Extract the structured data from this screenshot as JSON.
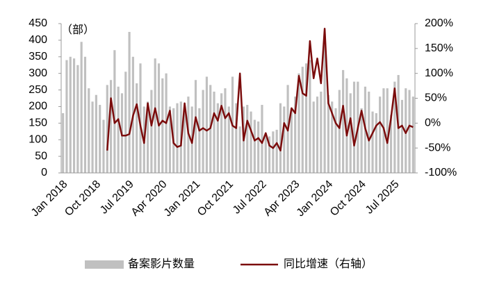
{
  "chart_data": {
    "type": "bar",
    "y_label": "（部）",
    "categories": [
      "Jan 2018",
      null,
      null,
      null,
      null,
      null,
      null,
      null,
      null,
      "Oct 2018",
      null,
      null,
      null,
      null,
      null,
      null,
      null,
      null,
      "Jul 2019",
      null,
      null,
      null,
      null,
      null,
      null,
      null,
      null,
      "Apr 2020",
      null,
      null,
      null,
      null,
      null,
      null,
      null,
      null,
      "Jan 2021",
      null,
      null,
      null,
      null,
      null,
      null,
      null,
      null,
      "Oct 2021",
      null,
      null,
      null,
      null,
      null,
      null,
      null,
      null,
      "Jul 2022",
      null,
      null,
      null,
      null,
      null,
      null,
      null,
      null,
      "Apr 2023",
      null,
      null,
      null,
      null,
      null,
      null,
      null,
      null,
      "Jan 2024",
      null,
      null,
      null,
      null,
      null,
      null,
      null,
      null,
      "Oct 2024",
      null,
      null,
      null,
      null,
      null,
      null,
      null,
      null,
      "Jul 2025",
      null,
      null,
      null,
      null,
      null
    ],
    "series": [
      {
        "name": "备案影片数量",
        "type": "bar",
        "color": "#c0c0c0",
        "values": [
          180,
          340,
          350,
          345,
          325,
          395,
          350,
          255,
          215,
          235,
          205,
          160,
          265,
          280,
          370,
          260,
          240,
          305,
          425,
          350,
          270,
          330,
          200,
          215,
          250,
          345,
          330,
          285,
          300,
          200,
          195,
          210,
          215,
          200,
          230,
          200,
          280,
          195,
          250,
          290,
          265,
          245,
          210,
          240,
          255,
          200,
          290,
          210,
          140,
          200,
          205,
          185,
          160,
          155,
          205,
          120,
          110,
          125,
          130,
          210,
          200,
          265,
          195,
          230,
          300,
          320,
          330,
          340,
          215,
          230,
          245,
          420,
          235,
          215,
          195,
          250,
          310,
          285,
          240,
          275,
          275,
          195,
          260,
          245,
          185,
          180,
          230,
          255,
          255,
          175,
          275,
          295,
          220,
          255,
          250,
          230
        ]
      },
      {
        "name": "同比增速（右轴）",
        "type": "line",
        "axis": "y2",
        "color": "#7b0c0c",
        "values": [
          null,
          null,
          null,
          null,
          null,
          null,
          null,
          null,
          null,
          null,
          null,
          null,
          -55,
          50,
          0,
          8,
          -25,
          -25,
          -22,
          15,
          38,
          -5,
          -40,
          40,
          -5,
          30,
          -5,
          5,
          0,
          25,
          -40,
          -48,
          -45,
          40,
          -20,
          -40,
          12,
          -15,
          -10,
          -15,
          -10,
          20,
          5,
          35,
          10,
          20,
          -5,
          -10,
          100,
          -35,
          5,
          -15,
          -35,
          -30,
          -40,
          -20,
          -45,
          -50,
          -40,
          -55,
          0,
          -15,
          30,
          20,
          95,
          60,
          55,
          165,
          90,
          130,
          80,
          190,
          40,
          20,
          0,
          -10,
          35,
          -25,
          10,
          -45,
          -10,
          25,
          -10,
          -35,
          -20,
          -5,
          2,
          -10,
          -40,
          10,
          70,
          -10,
          -5,
          -20,
          -5,
          -8
        ]
      }
    ],
    "ylim": [
      0,
      450
    ],
    "yticks": [
      0,
      50,
      100,
      150,
      200,
      250,
      300,
      350,
      400,
      450
    ],
    "y2lim": [
      -100,
      200
    ],
    "y2ticks": [
      {
        "value": -100,
        "label": "-100%"
      },
      {
        "value": -50,
        "label": "-50%"
      },
      {
        "value": 0,
        "label": "0%"
      },
      {
        "value": 50,
        "label": "50%"
      },
      {
        "value": 100,
        "label": "100%"
      },
      {
        "value": 150,
        "label": "150%"
      },
      {
        "value": 200,
        "label": "200%"
      }
    ],
    "grid": false,
    "legend": "bottom"
  }
}
